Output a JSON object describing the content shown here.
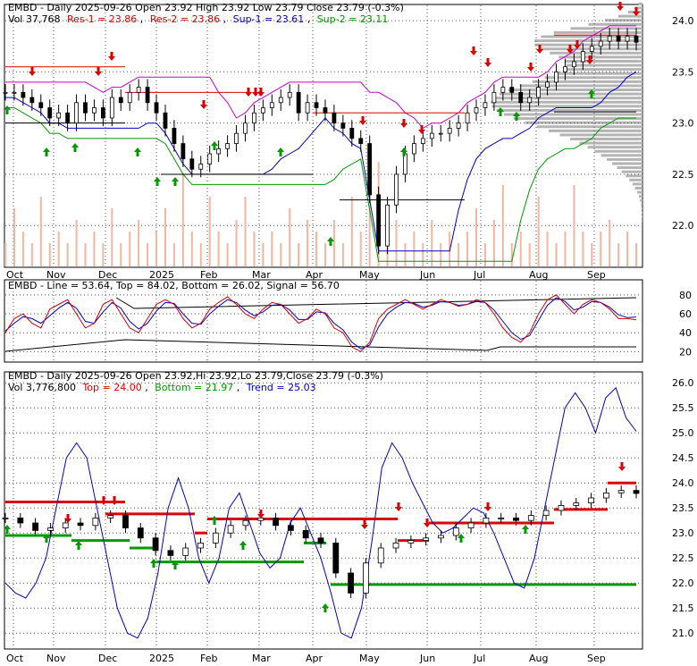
{
  "chart_data": [
    {
      "type": "candlestick",
      "panel": "price",
      "title": "EMBD - Daily 2025-09-26 Open 23.92  High 23.92  Low 23.79  Close 23.79 (-0.3%)",
      "stats": {
        "vol": "Vol 37,768",
        "res1": "Res-1 = 23.86",
        "res2": "Res-2 = 23.86",
        "sup1": "Sup-1 = 23.61",
        "sup2": "Sup-2 = 23.11"
      },
      "y_ticks": [
        "24.0",
        "23.5",
        "23.0",
        "22.5",
        "22.0"
      ],
      "y_tick_values": [
        24.0,
        23.5,
        23.0,
        22.5,
        22.0
      ],
      "ylim": [
        21.6,
        24.15
      ],
      "x_labels": [
        "Oct",
        "Nov",
        "Dec",
        "2025",
        "Feb",
        "Mar",
        "Apr",
        "May",
        "Jun",
        "Jul",
        "Aug",
        "Sep"
      ],
      "series": [
        {
          "name": "Close",
          "values": [
            23.3,
            23.3,
            23.25,
            23.2,
            23.15,
            23.05,
            23.1,
            23.0,
            23.2,
            23.1,
            23.15,
            23.05,
            23.25,
            23.2,
            23.3,
            23.35,
            23.2,
            23.1,
            22.95,
            22.8,
            22.65,
            22.55,
            22.6,
            22.7,
            22.75,
            22.8,
            22.9,
            23.0,
            23.1,
            23.15,
            23.2,
            23.25,
            23.3,
            23.1,
            23.2,
            23.15,
            23.1,
            23.0,
            22.95,
            22.85,
            22.8,
            22.3,
            21.8,
            22.2,
            22.5,
            22.7,
            22.8,
            22.85,
            22.9,
            22.9,
            22.95,
            23.0,
            23.1,
            23.15,
            23.2,
            23.3,
            23.35,
            23.3,
            23.2,
            23.25,
            23.35,
            23.4,
            23.5,
            23.55,
            23.6,
            23.7,
            23.75,
            23.8,
            23.85,
            23.8,
            23.85,
            23.79
          ]
        },
        {
          "name": "Volume",
          "values": [
            0.2,
            0.5,
            0.3,
            0.2,
            0.6,
            0.2,
            0.3,
            0.2,
            0.4,
            0.2,
            0.3,
            0.2,
            0.5,
            0.2,
            0.3,
            0.4,
            0.2,
            0.3,
            0.5,
            0.2,
            0.8,
            0.3,
            0.2,
            0.6,
            0.3,
            0.2,
            0.4,
            0.6,
            0.3,
            0.2,
            0.3,
            0.2,
            0.5,
            0.2,
            0.4,
            0.3,
            0.2,
            0.4,
            0.2,
            0.6,
            0.3,
            0.7,
            0.9,
            0.3,
            0.4,
            0.2,
            0.3,
            0.2,
            0.4,
            0.2,
            0.3,
            0.2,
            0.3,
            0.5,
            0.2,
            0.4,
            0.7,
            0.2,
            0.3,
            0.2,
            0.6,
            0.3,
            0.2,
            0.3,
            0.7,
            0.3,
            0.2,
            0.3,
            0.4,
            0.2,
            0.3,
            0.2
          ]
        }
      ]
    },
    {
      "type": "line",
      "panel": "stochastic",
      "title": "EMBD - Line = 53.64, Top = 84.02, Bottom = 26.02, Signal = 56.70",
      "y_ticks": [
        "80",
        "60",
        "40",
        "20"
      ],
      "y_tick_values": [
        80,
        60,
        40,
        20
      ],
      "ylim": [
        10,
        95
      ],
      "series": [
        {
          "name": "Line",
          "values": [
            40,
            55,
            60,
            50,
            45,
            65,
            70,
            75,
            60,
            45,
            50,
            70,
            75,
            60,
            45,
            40,
            55,
            70,
            75,
            70,
            55,
            45,
            50,
            65,
            72,
            78,
            70,
            60,
            55,
            65,
            72,
            70,
            60,
            50,
            55,
            65,
            60,
            45,
            40,
            25,
            20,
            30,
            55,
            65,
            70,
            75,
            70,
            65,
            70,
            75,
            72,
            68,
            70,
            75,
            72,
            60,
            45,
            35,
            30,
            40,
            60,
            75,
            80,
            70,
            60,
            70,
            75,
            72,
            65,
            55,
            55,
            53.64
          ]
        },
        {
          "name": "Signal",
          "values": [
            42,
            50,
            57,
            55,
            50,
            58,
            66,
            72,
            66,
            52,
            50,
            62,
            72,
            66,
            52,
            44,
            50,
            63,
            72,
            71,
            60,
            50,
            49,
            60,
            68,
            75,
            72,
            64,
            58,
            62,
            69,
            70,
            64,
            54,
            54,
            62,
            61,
            50,
            43,
            30,
            23,
            27,
            46,
            60,
            67,
            72,
            71,
            67,
            69,
            73,
            72,
            69,
            70,
            73,
            72,
            64,
            52,
            40,
            33,
            37,
            53,
            69,
            77,
            73,
            64,
            67,
            73,
            72,
            67,
            59,
            56,
            56.7
          ]
        }
      ]
    },
    {
      "type": "line",
      "panel": "trend",
      "title": "EMBD - Daily 2025-09-26 Open 23.92,Hi 23.92,Lo 23.79,Close 23.79 (-0.3%)",
      "stats": {
        "vol": "Vol 3,776,800",
        "top": "Top = 24.00",
        "bottom": "Bottom = 21.97",
        "trend": "Trend = 25.03"
      },
      "y_ticks": [
        "26.0",
        "25.5",
        "25.0",
        "24.5",
        "24.0",
        "23.5",
        "23.0",
        "22.5",
        "22.0",
        "21.5",
        "21.0"
      ],
      "y_tick_values": [
        26.0,
        25.5,
        25.0,
        24.5,
        24.0,
        23.5,
        23.0,
        22.5,
        22.0,
        21.5,
        21.0
      ],
      "ylim": [
        20.7,
        26.2
      ],
      "series": [
        {
          "name": "Trend",
          "values": [
            22.0,
            21.8,
            21.7,
            22.0,
            22.5,
            23.5,
            24.5,
            24.8,
            24.5,
            23.5,
            22.5,
            21.5,
            21.0,
            20.9,
            21.3,
            22.2,
            23.5,
            24.1,
            23.5,
            22.5,
            22.0,
            22.5,
            23.5,
            23.8,
            23.2,
            22.6,
            22.3,
            22.5,
            23.2,
            23.5,
            23.0,
            22.5,
            21.8,
            21.0,
            20.9,
            21.5,
            22.8,
            24.3,
            24.8,
            24.5,
            24.0,
            23.6,
            23.2,
            23.0,
            23.1,
            23.3,
            23.5,
            23.4,
            23.0,
            22.5,
            22.0,
            21.9,
            22.5,
            23.5,
            24.5,
            25.5,
            25.8,
            25.5,
            25.0,
            25.7,
            25.9,
            25.3,
            25.03
          ]
        },
        {
          "name": "Close",
          "values": [
            23.3,
            23.2,
            23.05,
            23.1,
            23.2,
            23.15,
            23.3,
            23.35,
            23.1,
            22.9,
            22.65,
            22.55,
            22.7,
            22.8,
            23.0,
            23.15,
            23.25,
            23.3,
            23.15,
            23.05,
            22.9,
            22.8,
            22.2,
            21.8,
            22.4,
            22.7,
            22.8,
            22.85,
            22.9,
            22.95,
            23.1,
            23.2,
            23.3,
            23.3,
            23.25,
            23.35,
            23.45,
            23.55,
            23.6,
            23.7,
            23.8,
            23.85,
            23.79
          ]
        }
      ]
    }
  ],
  "colors": {
    "res": "#dd0000",
    "sup_green": "#009900",
    "line_blue": "#0000cc",
    "magenta": "#cc00cc",
    "volume": "#f4b6a0",
    "profile": "#b4b4b4",
    "up_arrow": "#009900",
    "down_arrow": "#dd0000"
  }
}
